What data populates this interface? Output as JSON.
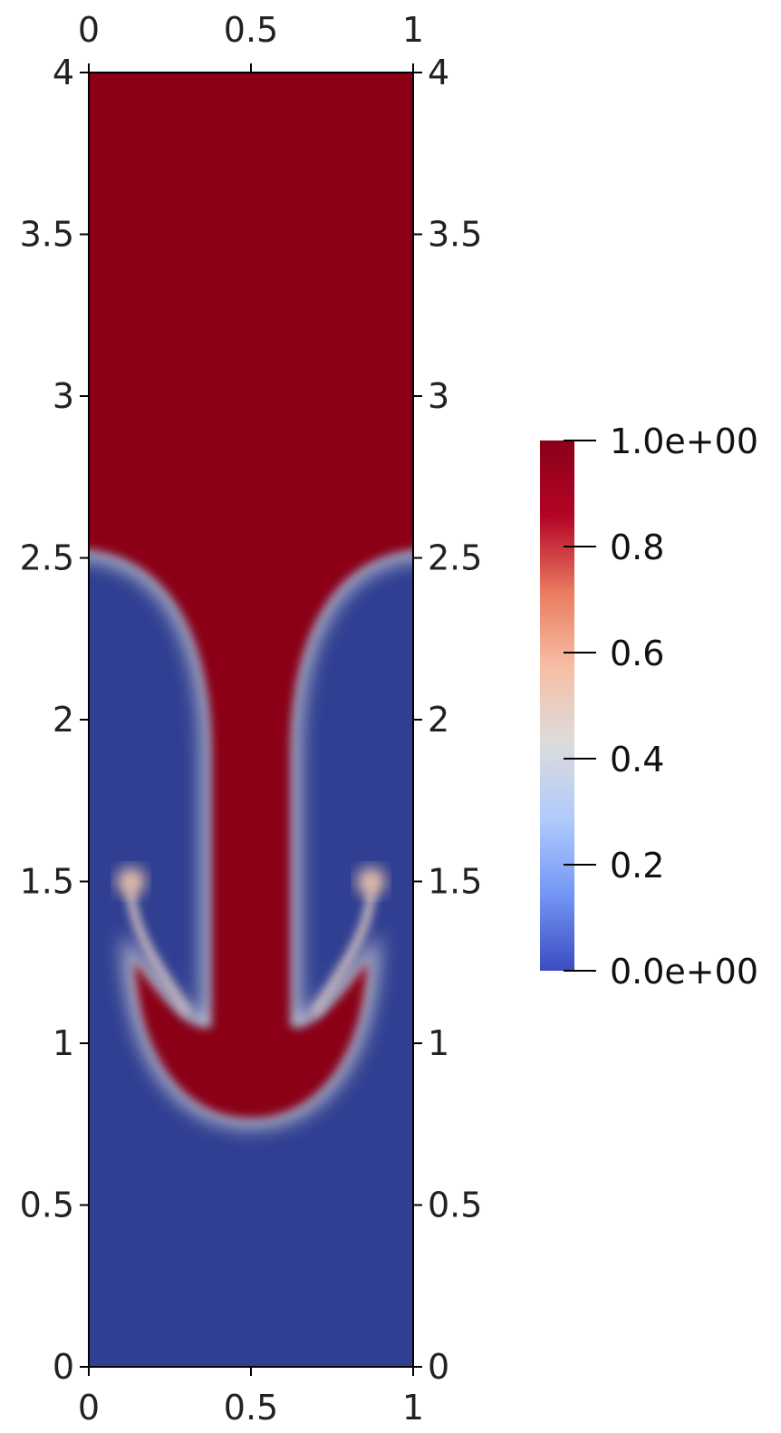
{
  "chart_data": {
    "type": "heatmap",
    "title": "",
    "xlabel": "",
    "ylabel": "",
    "xlim": [
      0,
      1
    ],
    "ylim": [
      0,
      4
    ],
    "x_ticks": [
      {
        "value": 0,
        "label": "0"
      },
      {
        "value": 0.5,
        "label": "0.5"
      },
      {
        "value": 1,
        "label": "1"
      }
    ],
    "y_ticks": [
      {
        "value": 0,
        "label": "0"
      },
      {
        "value": 0.5,
        "label": "0.5"
      },
      {
        "value": 1,
        "label": "1"
      },
      {
        "value": 1.5,
        "label": "1.5"
      },
      {
        "value": 2,
        "label": "2"
      },
      {
        "value": 2.5,
        "label": "2.5"
      },
      {
        "value": 3,
        "label": "3"
      },
      {
        "value": 3.5,
        "label": "3.5"
      },
      {
        "value": 4,
        "label": "4"
      }
    ],
    "axes_on_all_sides": true,
    "field": {
      "upper_value": 1.0,
      "lower_value": 0.0,
      "interface_edge_y": 2.53,
      "stem_half_width": 0.12,
      "cap_center": [
        0.5,
        1.15
      ],
      "cap_bottom_y": 0.77,
      "vortex_centers": [
        [
          0.13,
          1.5
        ],
        [
          0.87,
          1.5
        ]
      ]
    },
    "colorbar": {
      "colormap": "coolwarm",
      "range": [
        0,
        1
      ],
      "placement": "right",
      "colors": [
        "#3b4cc0",
        "#7396f5",
        "#b0cbfc",
        "#dddcdc",
        "#f6bfa6",
        "#ea7b60",
        "#b40426",
        "#8b0019"
      ],
      "ticks": [
        {
          "value": 0,
          "label": "0.0e+00"
        },
        {
          "value": 0.2,
          "label": "0.2"
        },
        {
          "value": 0.4,
          "label": "0.4"
        },
        {
          "value": 0.6,
          "label": "0.6"
        },
        {
          "value": 0.8,
          "label": "0.8"
        },
        {
          "value": 1.0,
          "label": "1.0e+00"
        }
      ]
    },
    "colors": {
      "high": "#8b0019",
      "low": "#303f91",
      "interface": "#d6d4d8"
    }
  }
}
